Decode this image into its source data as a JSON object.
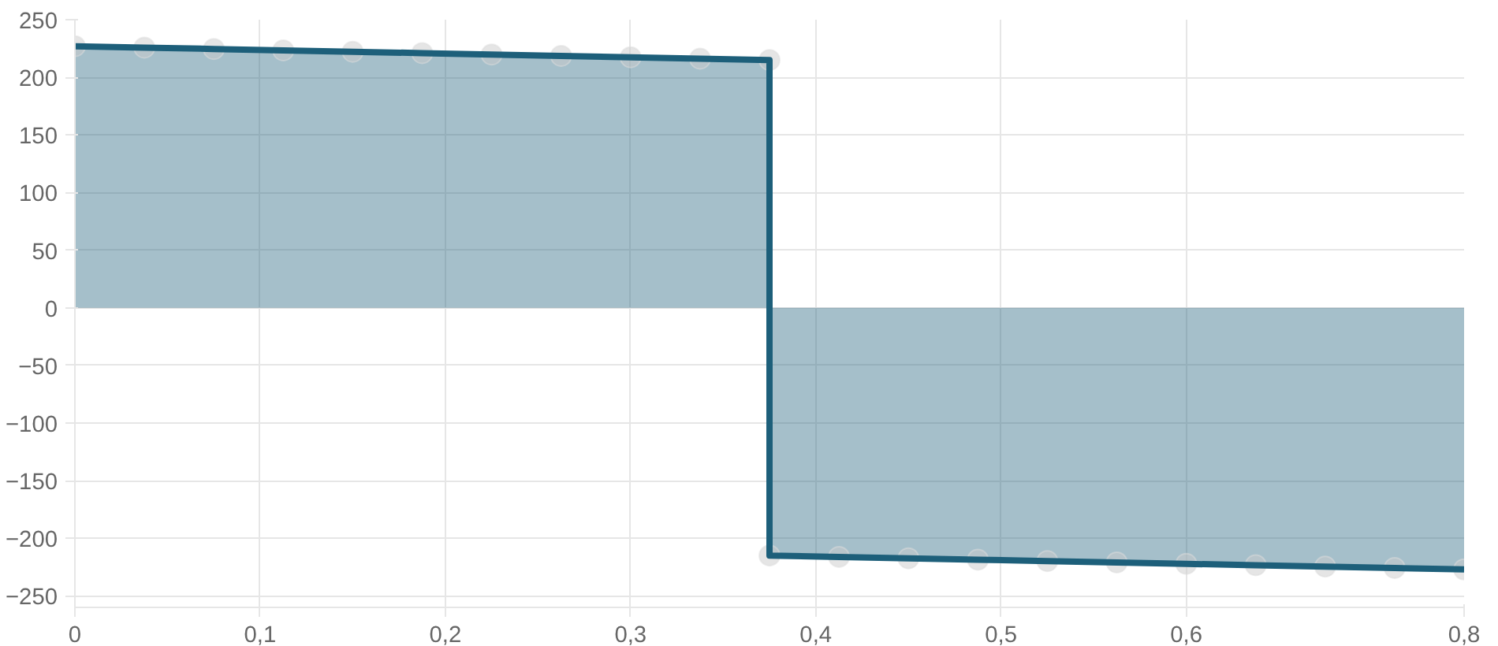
{
  "chart_data": {
    "type": "area",
    "x": [
      0,
      0.0375,
      0.075,
      0.1125,
      0.15,
      0.1875,
      0.225,
      0.2625,
      0.3,
      0.3375,
      0.375,
      0.375,
      0.4125,
      0.45,
      0.4875,
      0.525,
      0.5625,
      0.6,
      0.6375,
      0.675,
      0.7125,
      0.75
    ],
    "series": [
      {
        "color": "#1d5f7a",
        "values": [
          227,
          225.8,
          224.6,
          223.4,
          222.2,
          221,
          219.8,
          218.6,
          217.4,
          216.2,
          215,
          -215,
          -216.2,
          -217.4,
          -218.6,
          -219.8,
          -221,
          -222.2,
          -223.4,
          -224.6,
          -225.8,
          -227
        ]
      }
    ],
    "xlim": [
      0,
      0.75
    ],
    "xticks": [
      0,
      {
        "value": 0.1,
        "label": "0,1"
      },
      {
        "value": 0.2,
        "label": "0,2"
      },
      {
        "value": 0.3,
        "label": "0,3"
      },
      {
        "value": 0.4,
        "label": "0,4"
      },
      {
        "value": 0.5,
        "label": "0,5"
      },
      {
        "value": 0.6,
        "label": "0,6"
      },
      {
        "value": 0.75,
        "label": "0,8"
      }
    ],
    "ylim": [
      -260,
      250
    ],
    "yticks": [
      -250,
      -200,
      -150,
      -100,
      -50,
      0,
      50,
      100,
      150,
      200,
      250
    ],
    "grid": true,
    "marker": "circle"
  }
}
